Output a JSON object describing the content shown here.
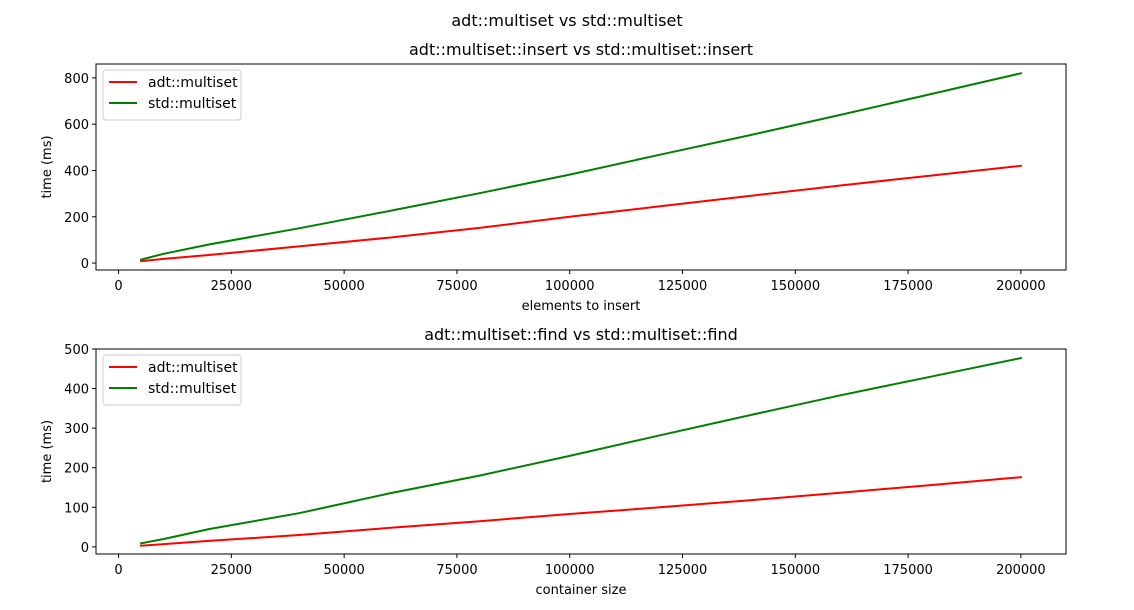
{
  "suptitle": "adt::multiset vs std::multiset",
  "chart_data": [
    {
      "type": "line",
      "title": "adt::multiset::insert vs std::multiset::insert",
      "xlabel": "elements to insert",
      "ylabel": "time (ms)",
      "xlim": [
        -5000,
        210000
      ],
      "ylim": [
        -30,
        860
      ],
      "xticks": [
        0,
        25000,
        50000,
        75000,
        100000,
        125000,
        150000,
        175000,
        200000
      ],
      "yticks": [
        0,
        200,
        400,
        600,
        800
      ],
      "legend": "upper left",
      "grid": false,
      "x": [
        5000,
        10000,
        20000,
        40000,
        60000,
        80000,
        100000,
        120000,
        140000,
        160000,
        180000,
        200000
      ],
      "series": [
        {
          "name": "adt::multiset",
          "color": "#ff0000",
          "values": [
            8,
            18,
            35,
            72,
            110,
            152,
            200,
            245,
            290,
            335,
            378,
            420
          ]
        },
        {
          "name": "std::multiset",
          "color": "#008000",
          "values": [
            15,
            40,
            80,
            150,
            225,
            302,
            382,
            468,
            553,
            640,
            730,
            820
          ]
        }
      ]
    },
    {
      "type": "line",
      "title": "adt::multiset::find vs std::multiset::find",
      "xlabel": "container size",
      "ylabel": "time (ms)",
      "xlim": [
        -5000,
        210000
      ],
      "ylim": [
        -18,
        500
      ],
      "xticks": [
        0,
        25000,
        50000,
        75000,
        100000,
        125000,
        150000,
        175000,
        200000
      ],
      "yticks": [
        0,
        100,
        200,
        300,
        400,
        500
      ],
      "legend": "upper left",
      "grid": false,
      "x": [
        5000,
        10000,
        20000,
        40000,
        60000,
        80000,
        100000,
        120000,
        140000,
        160000,
        180000,
        200000
      ],
      "series": [
        {
          "name": "adt::multiset",
          "color": "#ff0000",
          "values": [
            3,
            7,
            15,
            30,
            48,
            65,
            83,
            100,
            118,
            137,
            156,
            176
          ]
        },
        {
          "name": "std::multiset",
          "color": "#008000",
          "values": [
            9,
            20,
            45,
            85,
            135,
            180,
            230,
            282,
            333,
            383,
            430,
            477
          ]
        }
      ]
    }
  ]
}
